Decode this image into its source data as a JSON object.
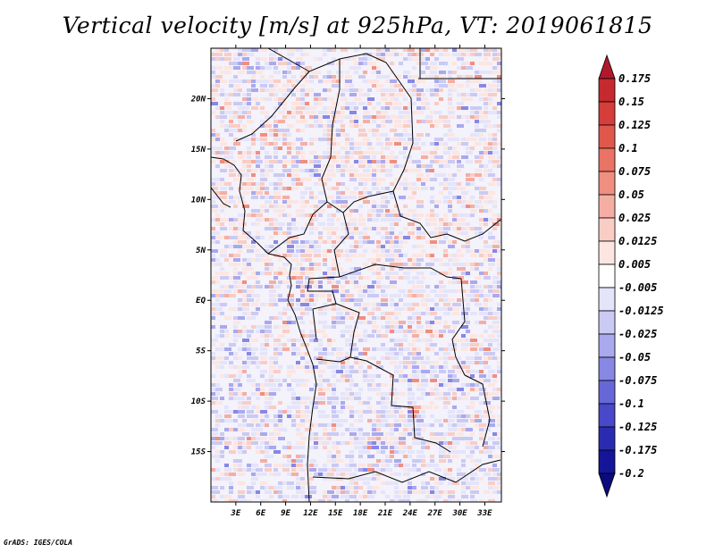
{
  "title": "Vertical velocity [m/s] at 925hPa, VT: 2019061815",
  "credit": "GrADS: IGES/COLA",
  "chart_data": {
    "type": "heatmap",
    "title": "Vertical velocity [m/s] at 925hPa, VT: 2019061815",
    "variable": "Vertical velocity",
    "units": "m/s",
    "level": "925hPa",
    "valid_time": "2019061815",
    "xlabel": "",
    "ylabel": "",
    "lon_range": [
      0,
      35
    ],
    "lat_range": [
      -20,
      25
    ],
    "x_ticks": [
      {
        "value": 3,
        "label": "3E"
      },
      {
        "value": 6,
        "label": "6E"
      },
      {
        "value": 9,
        "label": "9E"
      },
      {
        "value": 12,
        "label": "12E"
      },
      {
        "value": 15,
        "label": "15E"
      },
      {
        "value": 18,
        "label": "18E"
      },
      {
        "value": 21,
        "label": "21E"
      },
      {
        "value": 24,
        "label": "24E"
      },
      {
        "value": 27,
        "label": "27E"
      },
      {
        "value": 30,
        "label": "30E"
      },
      {
        "value": 33,
        "label": "33E"
      }
    ],
    "y_ticks": [
      {
        "value": 20,
        "label": "20N"
      },
      {
        "value": 15,
        "label": "15N"
      },
      {
        "value": 10,
        "label": "10N"
      },
      {
        "value": 5,
        "label": "5N"
      },
      {
        "value": 0,
        "label": "EQ"
      },
      {
        "value": -5,
        "label": "5S"
      },
      {
        "value": -10,
        "label": "10S"
      },
      {
        "value": -15,
        "label": "15S"
      }
    ],
    "colorbar": {
      "position": "right",
      "extend": "both",
      "levels": [
        0.175,
        0.15,
        0.125,
        0.1,
        0.075,
        0.05,
        0.025,
        0.0125,
        0.005,
        -0.005,
        -0.0125,
        -0.025,
        -0.05,
        -0.075,
        -0.1,
        -0.125,
        -0.175,
        -0.2
      ],
      "labels": [
        "0.175",
        "0.15",
        "0.125",
        "0.1",
        "0.075",
        "0.05",
        "0.025",
        "0.0125",
        "0.005",
        "-0.005",
        "-0.0125",
        "-0.025",
        "-0.05",
        "-0.075",
        "-0.1",
        "-0.125",
        "-0.175",
        "-0.2"
      ],
      "colors": [
        "#b2182b",
        "#c42a2f",
        "#d53e3a",
        "#e0584c",
        "#e97364",
        "#f08e80",
        "#f5aea3",
        "#f9cdc5",
        "#fce6e2",
        "#ffffff",
        "#e4e4fa",
        "#cacaf4",
        "#a9a9ee",
        "#8787e4",
        "#6767d8",
        "#4848c8",
        "#2b2bb2",
        "#15159a",
        "#0b0b7d"
      ]
    },
    "grid": false
  }
}
